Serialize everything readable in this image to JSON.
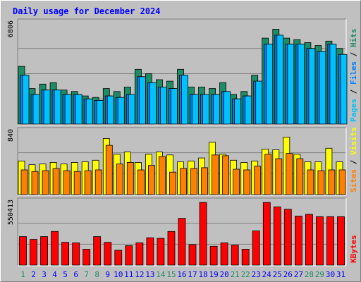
{
  "chart_data": {
    "type": "bar",
    "title": "Daily usage for December 2024",
    "categories": [
      "1",
      "2",
      "3",
      "4",
      "5",
      "6",
      "7",
      "8",
      "9",
      "10",
      "11",
      "12",
      "13",
      "14",
      "15",
      "16",
      "17",
      "18",
      "19",
      "20",
      "21",
      "22",
      "23",
      "24",
      "25",
      "26",
      "27",
      "28",
      "29",
      "30",
      "31"
    ],
    "weekend_days": [
      "1",
      "7",
      "8",
      "14",
      "15",
      "21",
      "22",
      "28",
      "29"
    ],
    "panels": [
      {
        "id": "hits",
        "y_max_label": "6806",
        "y_max": 6806,
        "axis_label": [
          "Pages",
          "Files",
          "Hits"
        ],
        "series": [
          {
            "name": "Hits",
            "color": "#1e8c64",
            "values": [
              3900,
              2400,
              2700,
              2800,
              2300,
              2200,
              1900,
              1800,
              2400,
              2200,
              2500,
              3700,
              3400,
              3000,
              2900,
              3700,
              2500,
              2500,
              2400,
              2800,
              2000,
              2200,
              3300,
              5800,
              6400,
              5800,
              5700,
              5500,
              5300,
              5600,
              5100
            ]
          },
          {
            "name": "Files",
            "color": "#0080ff",
            "values": [
              3300,
              2000,
              2300,
              2300,
              2000,
              2000,
              1700,
              1600,
              1900,
              1800,
              2000,
              3200,
              2800,
              2500,
              2400,
              3300,
              2000,
              2000,
              2000,
              2200,
              1700,
              1900,
              2900,
              5400,
              6000,
              5400,
              5400,
              5100,
              4900,
              5400,
              4700
            ]
          },
          {
            "name": "Pages",
            "color": "#00c0ff",
            "values": [
              3300,
              2000,
              2300,
              2300,
              2000,
              2000,
              1700,
              1600,
              1900,
              1800,
              2000,
              3200,
              2800,
              2500,
              2400,
              3300,
              2000,
              2000,
              2000,
              2200,
              1700,
              1900,
              2900,
              5400,
              6000,
              5400,
              5400,
              5100,
              4900,
              5400,
              4700
            ]
          }
        ]
      },
      {
        "id": "visits",
        "y_max_label": "840",
        "y_max": 840,
        "axis_label": [
          "Sites",
          "Visits"
        ],
        "series": [
          {
            "name": "Visits",
            "color": "#ffff00",
            "values": [
              450,
              400,
              410,
              430,
              410,
              430,
              440,
              460,
              750,
              540,
              570,
              430,
              540,
              570,
              530,
              440,
              450,
              490,
              700,
              540,
              460,
              430,
              450,
              610,
              600,
              770,
              540,
              440,
              440,
              620,
              440
            ]
          },
          {
            "name": "Sites",
            "color": "#ff8000",
            "values": [
              330,
              310,
              320,
              350,
              320,
              310,
              320,
              330,
              660,
              410,
              430,
              330,
              390,
              510,
              300,
              350,
              350,
              360,
              530,
              520,
              340,
              330,
              380,
              540,
              480,
              550,
              480,
              330,
              320,
              330,
              330
            ]
          }
        ]
      },
      {
        "id": "kbytes",
        "y_max_label": "550413",
        "y_max": 550413,
        "axis_label": [
          "KBytes"
        ],
        "series": [
          {
            "name": "KBytes",
            "color": "#ff0000",
            "values": [
              250000,
              225000,
              250000,
              295000,
              200000,
              195000,
              140000,
              250000,
              200000,
              130000,
              170000,
              195000,
              240000,
              235000,
              295000,
              410000,
              180000,
              550000,
              165000,
              195000,
              175000,
              140000,
              300000,
              550000,
              510000,
              490000,
              430000,
              445000,
              425000,
              425000,
              425000
            ]
          }
        ]
      }
    ],
    "colors": {
      "background": "#c0c0c0",
      "title": "#0000ff",
      "hits": "#1e8c64",
      "files": "#0080ff",
      "pages": "#00c0ff",
      "visits": "#ffff00",
      "sites": "#ff8000",
      "kbytes": "#ff0000",
      "weekday_label": "#0000ff",
      "weekend_label": "#1e8c64"
    }
  }
}
